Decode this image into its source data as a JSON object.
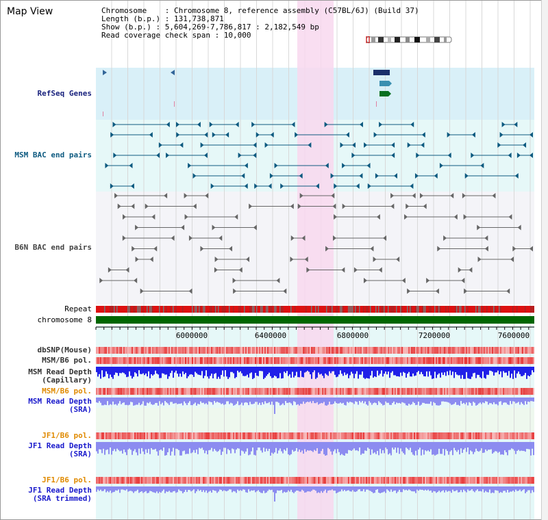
{
  "view": {
    "title": "Map View"
  },
  "info": {
    "chromosome": "Chromosome    : Chromosome 8, reference assembly (C57BL/6J) (Build 37)",
    "length": "Length (b.p.) : 131,738,871",
    "show": "Show (b.p.) : 5,604,269-7,786,817 : 2,182,549 bp",
    "coverage": "Read coverage check span : 10,000"
  },
  "tracks": {
    "refseq": "RefSeq Genes",
    "msm_bac": "MSM BAC end pairs",
    "b6n_bac": "B6N BAC end pairs",
    "repeat": "Repeat",
    "chromosome": "chromosome 8",
    "dbsnp": "dbSNP(Mouse)",
    "msm_pol": "MSM/B6 pol.",
    "msm_depth_cap_1": "MSM Read Depth",
    "msm_depth_cap_2": "(Capillary)",
    "msm_pol_sra": "MSM/B6 pol.",
    "msm_depth_sra_1": "MSM Read Depth",
    "msm_depth_sra_2": "(SRA)",
    "jf1_pol": "JF1/B6 pol.",
    "jf1_depth_1": "JF1 Read Depth",
    "jf1_depth_2": "(SRA)",
    "jf1_pol_trim": "JF1/B6 pol.",
    "jf1_trim_1": "JF1 Read Depth",
    "jf1_trim_2": "(SRA trimmed)"
  },
  "axis": {
    "ticks": [
      "6000000",
      "6400000",
      "6800000",
      "7200000",
      "7600000"
    ]
  },
  "colors": {
    "refseq_bg": "#d9f0f8",
    "bac_bg": "#e6f8f8",
    "b6n_bg": "#f4f4f8",
    "highlight": "#f8d8ee",
    "chrom_green": "#006600",
    "msm_bac": "#0d5a80",
    "b6n_bac": "#666666",
    "depth_blue": "#2020e8",
    "depth_lilac": "#8c8cf0",
    "pol_red": "#e84040"
  }
}
